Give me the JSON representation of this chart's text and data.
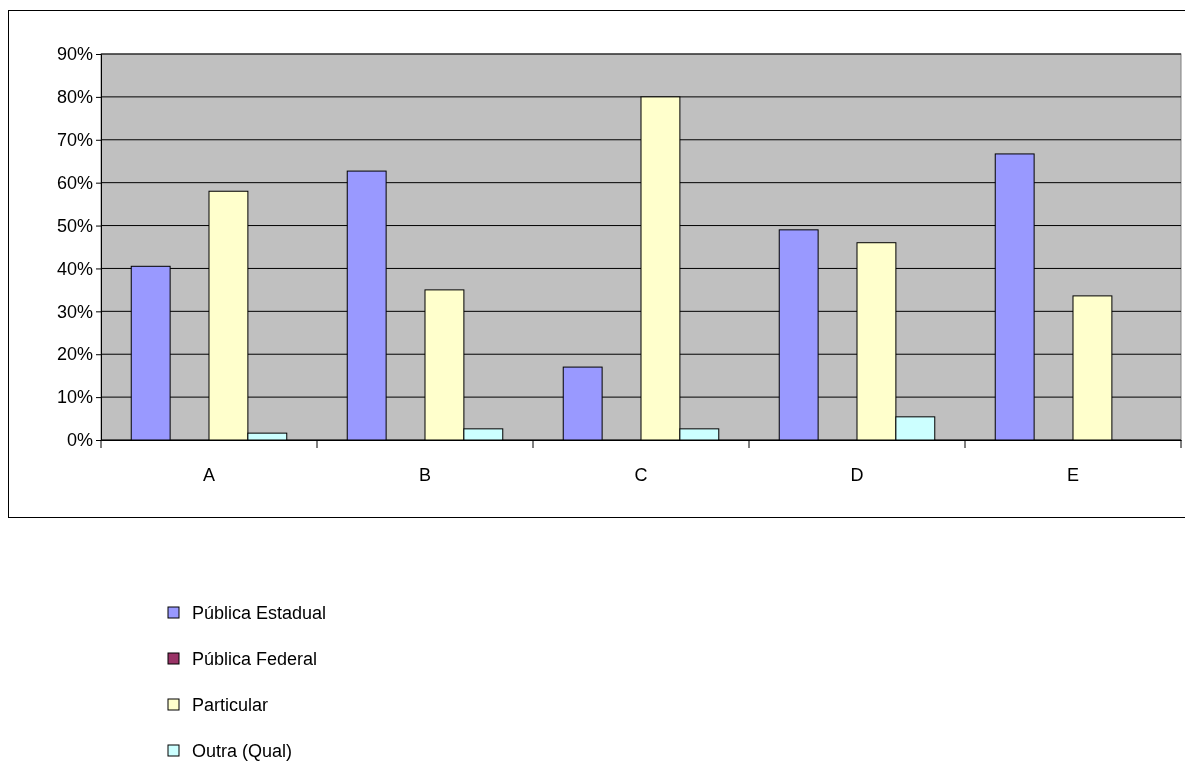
{
  "chart_data": {
    "type": "bar",
    "categories": [
      "A",
      "B",
      "C",
      "D",
      "E"
    ],
    "series": [
      {
        "name": "Pública Estadual",
        "color": "#9999ff",
        "values": [
          40.5,
          62.7,
          17,
          49,
          66.7
        ]
      },
      {
        "name": "Pública Federal",
        "color": "#993366",
        "values": [
          0,
          0,
          0,
          0,
          0
        ]
      },
      {
        "name": "Particular",
        "color": "#ffffcc",
        "values": [
          58,
          35,
          80,
          46,
          33.6
        ]
      },
      {
        "name": "Outra (Qual)",
        "color": "#ccffff",
        "values": [
          1.6,
          2.6,
          2.6,
          5.4,
          0
        ]
      }
    ],
    "ylim": [
      0,
      90
    ],
    "yticks": [
      {
        "value": 0,
        "label": "0%"
      },
      {
        "value": 10,
        "label": "10%"
      },
      {
        "value": 20,
        "label": "20%"
      },
      {
        "value": 30,
        "label": "30%"
      },
      {
        "value": 40,
        "label": "40%"
      },
      {
        "value": 50,
        "label": "50%"
      },
      {
        "value": 60,
        "label": "60%"
      },
      {
        "value": 70,
        "label": "70%"
      },
      {
        "value": 80,
        "label": "80%"
      },
      {
        "value": 90,
        "label": "90%"
      }
    ],
    "grid": "y",
    "legend": "bottom"
  }
}
